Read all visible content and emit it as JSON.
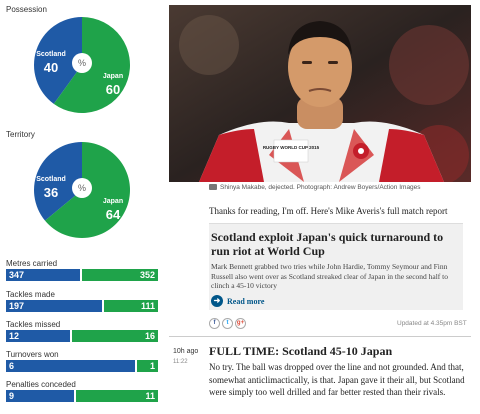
{
  "stats": {
    "possession": {
      "label": "Possession",
      "scotland": {
        "team": "Scotland",
        "value": "40",
        "pct": 40
      },
      "japan": {
        "team": "Japan",
        "value": "60",
        "pct": 60
      },
      "symbol": "%"
    },
    "territory": {
      "label": "Territory",
      "scotland": {
        "team": "Scotland",
        "value": "36",
        "pct": 36
      },
      "japan": {
        "team": "Japan",
        "value": "64",
        "pct": 64
      },
      "symbol": "%"
    },
    "bars": [
      {
        "label": "Metres carried",
        "scotland": "347",
        "japan": "352",
        "s": 347,
        "j": 352
      },
      {
        "label": "Tackles made",
        "scotland": "197",
        "japan": "111",
        "s": 197,
        "j": 111
      },
      {
        "label": "Tackles missed",
        "scotland": "12",
        "japan": "16",
        "s": 12,
        "j": 16
      },
      {
        "label": "Turnovers won",
        "scotland": "6",
        "japan": "1",
        "s": 6,
        "j": 1
      },
      {
        "label": "Penalties conceded",
        "scotland": "9",
        "japan": "11",
        "s": 9,
        "j": 11
      }
    ],
    "colors": {
      "scotland": "#1f5aa6",
      "japan": "#1fa34a"
    }
  },
  "photo": {
    "caption": "Shinya Makabe, dejected. Photograph: Andrew Boyers/Action Images",
    "shirt_text": "RUGBY WORLD CUP 2015"
  },
  "entry1": {
    "thanks": "Thanks for reading, I'm off. Here's Mike Averis's full match report",
    "card_headline": "Scotland exploit Japan's quick turnaround to run riot at World Cup",
    "card_summary": "Mark Bennett grabbed two tries while John Hardie, Tommy Seymour and Finn Russell also went over as Scotland streaked clear of Japan in the second half to clinch a 45-10 victory",
    "read_more": "Read more",
    "updated": "Updated at 4.35pm BST"
  },
  "social": {
    "facebook": "f",
    "twitter": "t",
    "google": "g+"
  },
  "entry2": {
    "time_ago": "10h ago",
    "time": "11:22",
    "headline": "FULL TIME: Scotland 45-10 Japan",
    "body": "No try. The ball was dropped over the line and not grounded. And that, somewhat anticlimactically, is that. Japan gave it their all, but Scotland were simply too well drilled and far better rested than their rivals."
  }
}
